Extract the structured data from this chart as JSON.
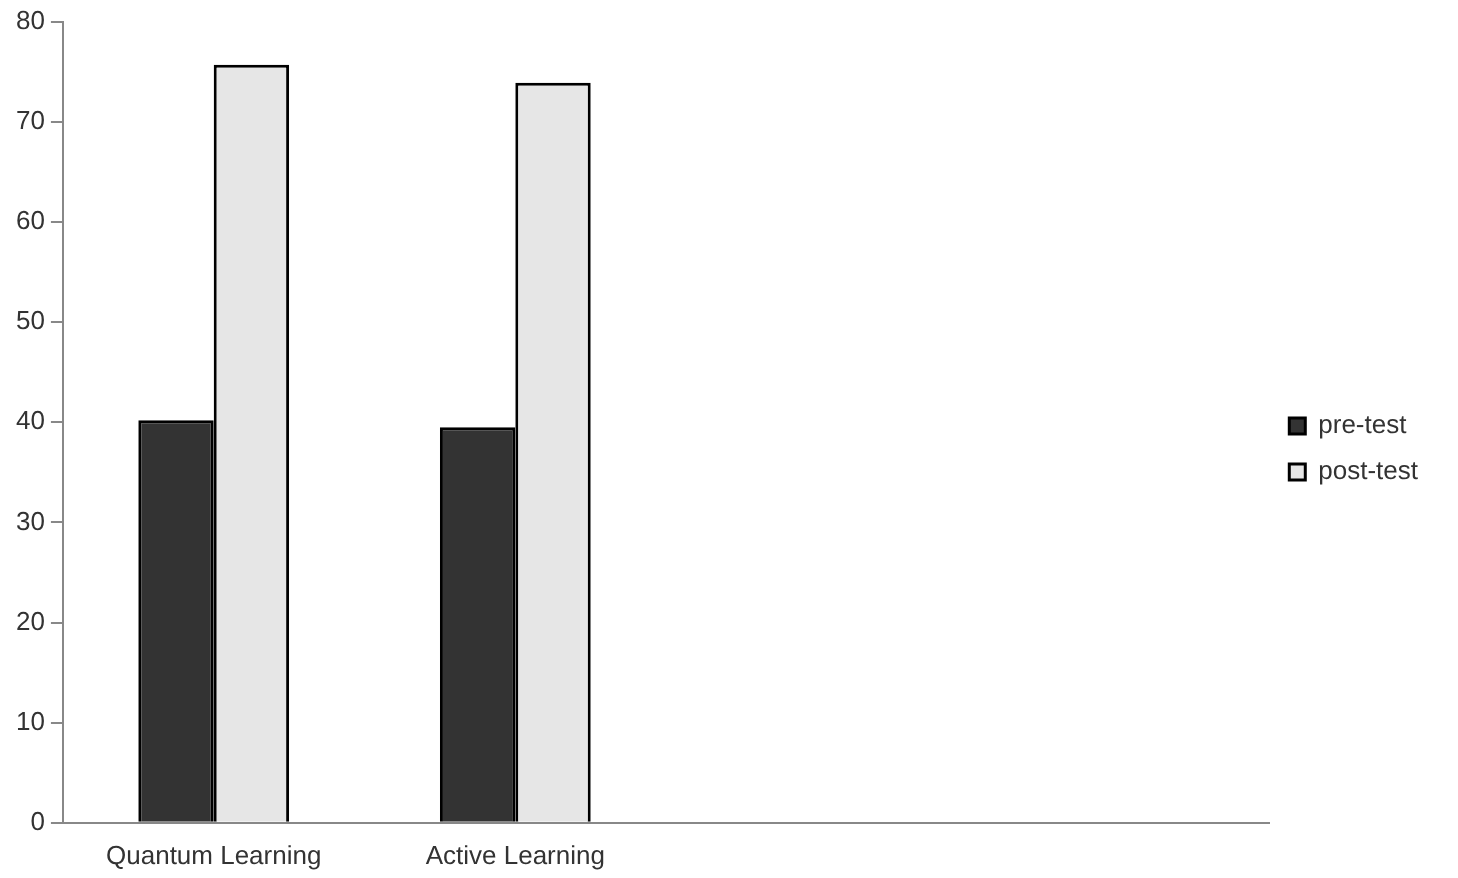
{
  "chart_data": {
    "type": "bar",
    "categories": [
      "Quantum Learning",
      "Active Learning",
      null,
      null
    ],
    "series": [
      {
        "name": "pre-test",
        "color": "#333333",
        "values": [
          40.2,
          39.5,
          null,
          null
        ]
      },
      {
        "name": "post-test",
        "color": "#e6e6e6",
        "values": [
          75.7,
          73.9,
          null,
          null
        ]
      }
    ],
    "ylim": [
      0,
      80
    ],
    "yticks": [
      0,
      10,
      20,
      30,
      40,
      50,
      60,
      70,
      80
    ],
    "grid": false,
    "legend": "right"
  }
}
